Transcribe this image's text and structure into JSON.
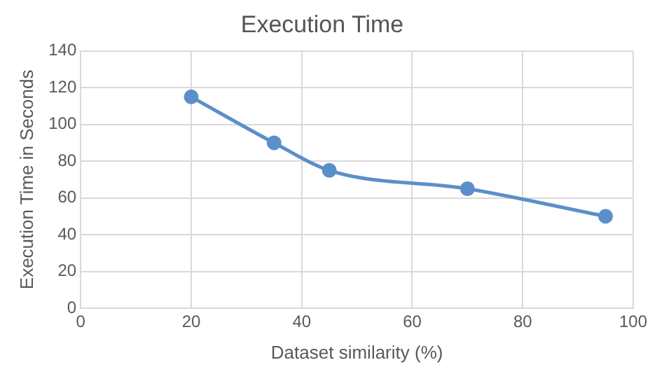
{
  "chart_data": {
    "type": "line",
    "title": "Execution Time",
    "xlabel": "Dataset similarity (%)",
    "ylabel": "Execution Time in Seconds",
    "x": [
      20,
      35,
      45,
      70,
      95
    ],
    "series": [
      {
        "color": "#5b8fc9",
        "values": [
          115,
          90,
          75,
          65,
          50
        ]
      }
    ],
    "xlim": [
      0,
      100
    ],
    "xticks": [
      0,
      20,
      40,
      60,
      80,
      100
    ],
    "ylim": [
      0,
      140
    ],
    "yticks": [
      0,
      20,
      40,
      60,
      80,
      100,
      120,
      140
    ],
    "grid": true,
    "legend": false,
    "marker": "circle",
    "line_style": "solid"
  }
}
